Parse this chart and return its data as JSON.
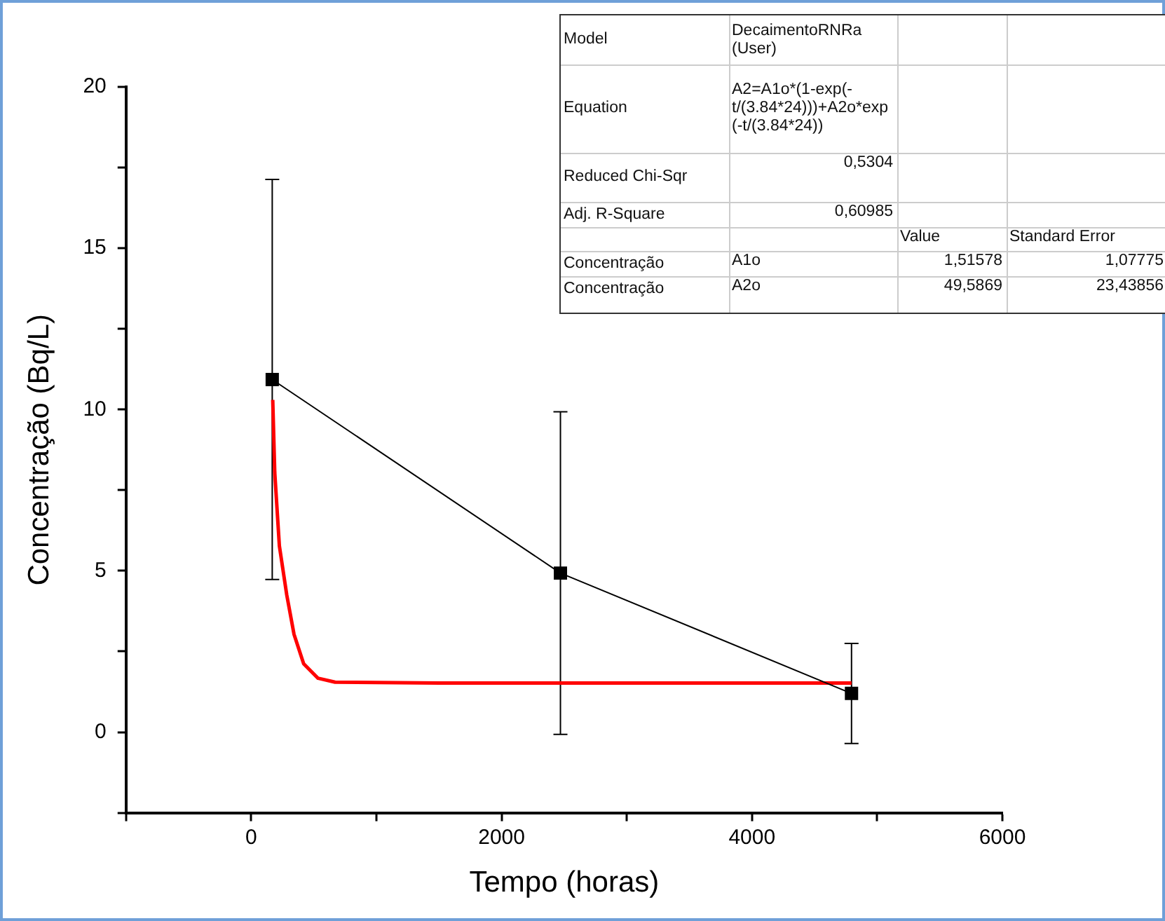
{
  "chart_data": {
    "type": "line",
    "xlabel": "Tempo (horas)",
    "ylabel": "Concentração (Bq/L)",
    "xlim": [
      -1000,
      6000
    ],
    "xticks": [
      {
        "value": -1000,
        "label": null
      },
      0,
      {
        "value": 1000,
        "label": null
      },
      2000,
      {
        "value": 3000,
        "label": null
      },
      4000,
      {
        "value": 5000,
        "label": null
      },
      6000
    ],
    "ylim": [
      -2.5,
      20
    ],
    "yticks": [
      {
        "value": -2.5,
        "label": null
      },
      0,
      {
        "value": 2.5,
        "label": null
      },
      5,
      {
        "value": 7.5,
        "label": null
      },
      10,
      {
        "value": 12.5,
        "label": null
      },
      15,
      {
        "value": 17.5,
        "label": null
      },
      20
    ],
    "grid": false,
    "legend": false,
    "series": [
      {
        "color": "#000000",
        "marker": "square",
        "x": [
          168,
          2470,
          4795
        ],
        "values": [
          10.93,
          4.93,
          1.2
        ],
        "errors": [
          6.2,
          5.0,
          1.55
        ]
      },
      {
        "color": "#ff0000",
        "marker": "none",
        "x": [
          172,
          188,
          225,
          284,
          342,
          419,
          534,
          670,
          1500,
          3000,
          4795
        ],
        "values": [
          10.3,
          8.05,
          5.77,
          4.25,
          3.03,
          2.12,
          1.67,
          1.55,
          1.52,
          1.52,
          1.52
        ]
      }
    ],
    "annotations": [
      "Model",
      "DecaimentoRNRa (User)",
      "Equation",
      "A2=A1o*(1-exp(-t/(3.84*24)))+A2o*exp(-t/(3.84*24))",
      "Reduced Chi-Sqr",
      "0,5304",
      "Adj. R-Square",
      "0,60985",
      "Value",
      "Standard Error",
      "Concentração",
      "A1o",
      "1,51578",
      "1,07775",
      "Concentração",
      "A2o",
      "49,5869",
      "23,43856"
    ]
  }
}
